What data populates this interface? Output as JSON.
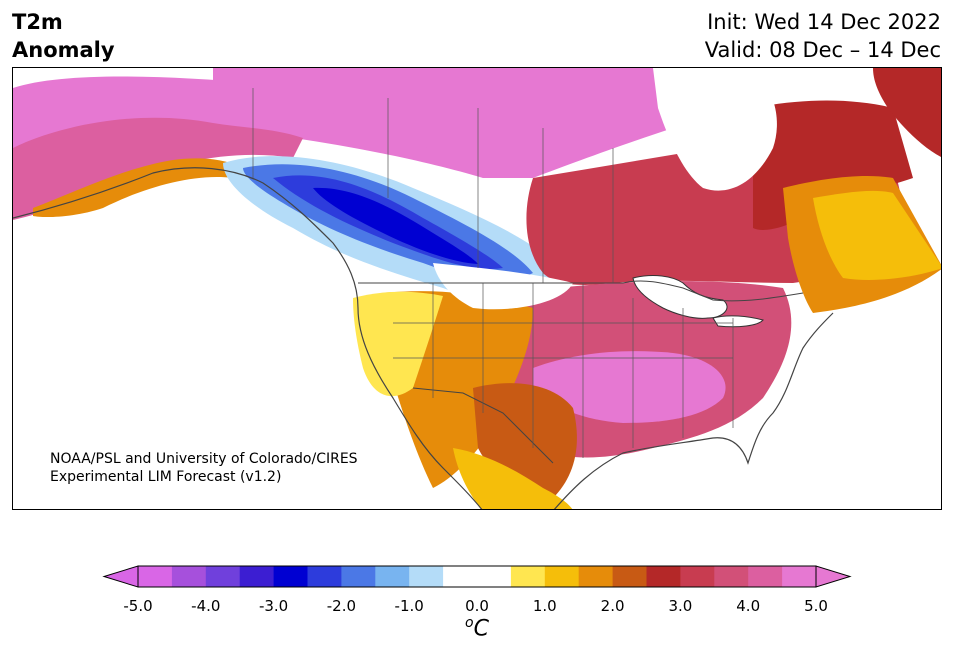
{
  "header": {
    "title_line1": "T2m",
    "title_line2": "Anomaly",
    "init": "Init: Wed 14 Dec 2022",
    "valid": "Valid: 08 Dec – 14 Dec"
  },
  "credit": {
    "line1": "NOAA/PSL and University of Colorado/CIRES",
    "line2": "Experimental LIM Forecast (v1.2)"
  },
  "colorbar": {
    "unit_base": "C",
    "unit_sup": "o",
    "tick_labels": [
      "-5.0",
      "-4.0",
      "-3.0",
      "-2.0",
      "-1.0",
      "0.0",
      "1.0",
      "2.0",
      "3.0",
      "4.0",
      "5.0"
    ],
    "colors": [
      "#d966e6",
      "#a650dc",
      "#7040dc",
      "#3c1ed2",
      "#0000d2",
      "#2d3cdc",
      "#4b78e6",
      "#78b4f0",
      "#b4dcf8",
      "#ffffff",
      "#ffffff",
      "#ffe650",
      "#f5be0a",
      "#e68c0a",
      "#c85a14",
      "#b42828",
      "#c83c50",
      "#d25078",
      "#dc5fa0",
      "#e678d2"
    ]
  },
  "map": {
    "region": "North America",
    "variable": "2-meter temperature anomaly"
  }
}
